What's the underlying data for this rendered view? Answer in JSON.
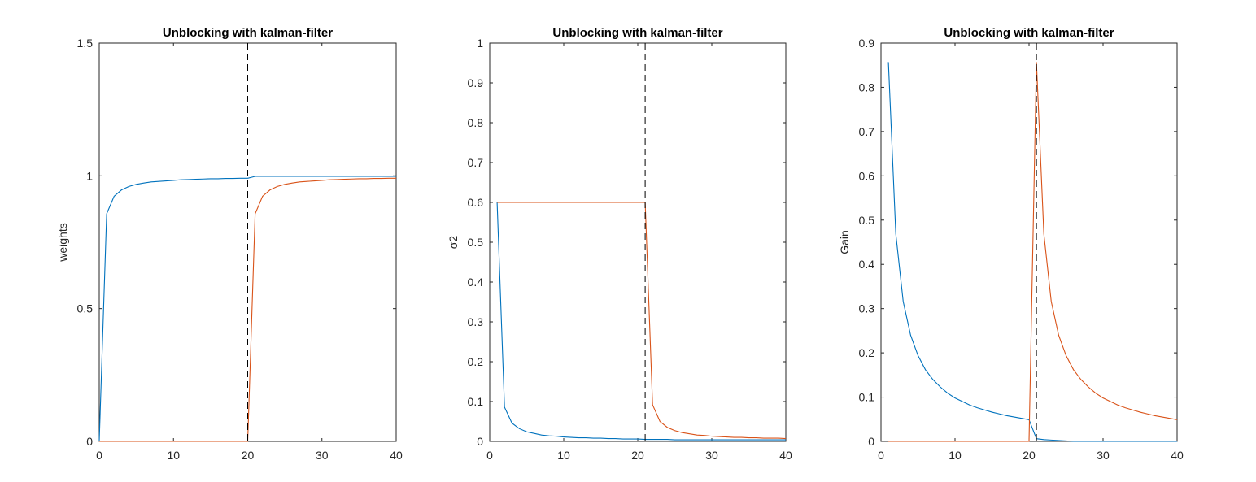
{
  "chart_data": [
    {
      "type": "line",
      "title": "Unblocking with kalman-filter",
      "xlabel": "",
      "ylabel": "weights",
      "xlim": [
        0,
        40
      ],
      "ylim": [
        0,
        1.5
      ],
      "xticks": [
        0,
        10,
        20,
        30,
        40
      ],
      "yticks": [
        0,
        0.5,
        1,
        1.5
      ],
      "vline": 20,
      "grid": false,
      "series": [
        {
          "color": "#0072BD",
          "x": [
            0,
            1,
            2,
            3,
            4,
            5,
            6,
            7,
            8,
            9,
            10,
            11,
            12,
            13,
            14,
            15,
            16,
            17,
            18,
            19,
            20,
            21,
            22,
            23,
            24,
            25,
            26,
            27,
            28,
            29,
            30,
            31,
            32,
            33,
            34,
            35,
            36,
            37,
            38,
            39,
            40
          ],
          "y": [
            0,
            0.857,
            0.923,
            0.947,
            0.96,
            0.968,
            0.973,
            0.977,
            0.979,
            0.981,
            0.983,
            0.985,
            0.986,
            0.987,
            0.988,
            0.989,
            0.989,
            0.99,
            0.99,
            0.991,
            0.991,
            0.998,
            0.998,
            0.998,
            0.998,
            0.998,
            0.998,
            0.998,
            0.998,
            0.998,
            0.998,
            0.998,
            0.998,
            0.998,
            0.998,
            0.998,
            0.998,
            0.998,
            0.998,
            0.998,
            0.998
          ]
        },
        {
          "color": "#D95319",
          "x": [
            0,
            1,
            2,
            3,
            4,
            5,
            6,
            7,
            8,
            9,
            10,
            11,
            12,
            13,
            14,
            15,
            16,
            17,
            18,
            19,
            20,
            21,
            22,
            23,
            24,
            25,
            26,
            27,
            28,
            29,
            30,
            31,
            32,
            33,
            34,
            35,
            36,
            37,
            38,
            39,
            40
          ],
          "y": [
            0,
            0,
            0,
            0,
            0,
            0,
            0,
            0,
            0,
            0,
            0,
            0,
            0,
            0,
            0,
            0,
            0,
            0,
            0,
            0,
            0,
            0.857,
            0.923,
            0.947,
            0.96,
            0.968,
            0.973,
            0.977,
            0.979,
            0.981,
            0.983,
            0.985,
            0.986,
            0.987,
            0.988,
            0.989,
            0.989,
            0.99,
            0.99,
            0.991,
            0.991
          ]
        }
      ]
    },
    {
      "type": "line",
      "title": "Unblocking with kalman-filter",
      "xlabel": "",
      "ylabel": "σ2",
      "xlim": [
        0,
        40
      ],
      "ylim": [
        0,
        1
      ],
      "xticks": [
        0,
        10,
        20,
        30,
        40
      ],
      "yticks": [
        0,
        0.1,
        0.2,
        0.3,
        0.4,
        0.5,
        0.6,
        0.7,
        0.8,
        0.9,
        1
      ],
      "vline": 21,
      "grid": false,
      "series": [
        {
          "color": "#0072BD",
          "x": [
            1,
            2,
            3,
            4,
            5,
            6,
            7,
            8,
            9,
            10,
            11,
            12,
            13,
            14,
            15,
            16,
            17,
            18,
            19,
            20,
            21,
            22,
            23,
            24,
            25,
            26,
            27,
            28,
            29,
            30,
            31,
            32,
            33,
            34,
            35,
            36,
            37,
            38,
            39,
            40
          ],
          "y": [
            0.6,
            0.086,
            0.046,
            0.032,
            0.024,
            0.02,
            0.016,
            0.014,
            0.013,
            0.011,
            0.01,
            0.009,
            0.009,
            0.008,
            0.008,
            0.007,
            0.007,
            0.006,
            0.006,
            0.006,
            0.005,
            0.005,
            0.005,
            0.005,
            0.004,
            0.004,
            0.004,
            0.004,
            0.004,
            0.004,
            0.004,
            0.004,
            0.004,
            0.004,
            0.004,
            0.004,
            0.004,
            0.004,
            0.004,
            0.004
          ]
        },
        {
          "color": "#D95319",
          "x": [
            1,
            2,
            3,
            4,
            5,
            6,
            7,
            8,
            9,
            10,
            11,
            12,
            13,
            14,
            15,
            16,
            17,
            18,
            19,
            20,
            21,
            22,
            23,
            24,
            25,
            26,
            27,
            28,
            29,
            30,
            31,
            32,
            33,
            34,
            35,
            36,
            37,
            38,
            39,
            40
          ],
          "y": [
            0.6,
            0.6,
            0.6,
            0.6,
            0.6,
            0.6,
            0.6,
            0.6,
            0.6,
            0.6,
            0.6,
            0.6,
            0.6,
            0.6,
            0.6,
            0.6,
            0.6,
            0.6,
            0.6,
            0.6,
            0.6,
            0.092,
            0.05,
            0.035,
            0.027,
            0.022,
            0.019,
            0.016,
            0.015,
            0.013,
            0.012,
            0.011,
            0.01,
            0.01,
            0.009,
            0.009,
            0.008,
            0.008,
            0.008,
            0.007
          ]
        }
      ]
    },
    {
      "type": "line",
      "title": "Unblocking with kalman-filter",
      "xlabel": "",
      "ylabel": "Gain",
      "xlim": [
        0,
        40
      ],
      "ylim": [
        0,
        0.9
      ],
      "xticks": [
        0,
        10,
        20,
        30,
        40
      ],
      "yticks": [
        0,
        0.1,
        0.2,
        0.3,
        0.4,
        0.5,
        0.6,
        0.7,
        0.8,
        0.9
      ],
      "vline": 21,
      "grid": false,
      "series": [
        {
          "color": "#0072BD",
          "x": [
            1,
            2,
            3,
            4,
            5,
            6,
            7,
            8,
            9,
            10,
            11,
            12,
            13,
            14,
            15,
            16,
            17,
            18,
            19,
            20,
            21,
            22,
            23,
            24,
            25,
            26,
            27,
            28,
            29,
            30,
            31,
            32,
            33,
            34,
            35,
            36,
            37,
            38,
            39,
            40
          ],
          "y": [
            0.857,
            0.469,
            0.316,
            0.24,
            0.194,
            0.162,
            0.14,
            0.123,
            0.109,
            0.098,
            0.09,
            0.082,
            0.076,
            0.071,
            0.066,
            0.062,
            0.058,
            0.055,
            0.052,
            0.049,
            0.006,
            0.004,
            0.003,
            0.002,
            0.001,
            0,
            0,
            0,
            0,
            0,
            0,
            0,
            0,
            0,
            0,
            0,
            0,
            0,
            0,
            0
          ]
        },
        {
          "color": "#D95319",
          "x": [
            1,
            2,
            3,
            4,
            5,
            6,
            7,
            8,
            9,
            10,
            11,
            12,
            13,
            14,
            15,
            16,
            17,
            18,
            19,
            20,
            21,
            22,
            23,
            24,
            25,
            26,
            27,
            28,
            29,
            30,
            31,
            32,
            33,
            34,
            35,
            36,
            37,
            38,
            39,
            40
          ],
          "y": [
            0,
            0,
            0,
            0,
            0,
            0,
            0,
            0,
            0,
            0,
            0,
            0,
            0,
            0,
            0,
            0,
            0,
            0,
            0,
            0,
            0.857,
            0.469,
            0.316,
            0.24,
            0.194,
            0.162,
            0.14,
            0.123,
            0.109,
            0.098,
            0.09,
            0.082,
            0.076,
            0.071,
            0.066,
            0.062,
            0.058,
            0.055,
            0.052,
            0.049
          ]
        }
      ]
    }
  ]
}
